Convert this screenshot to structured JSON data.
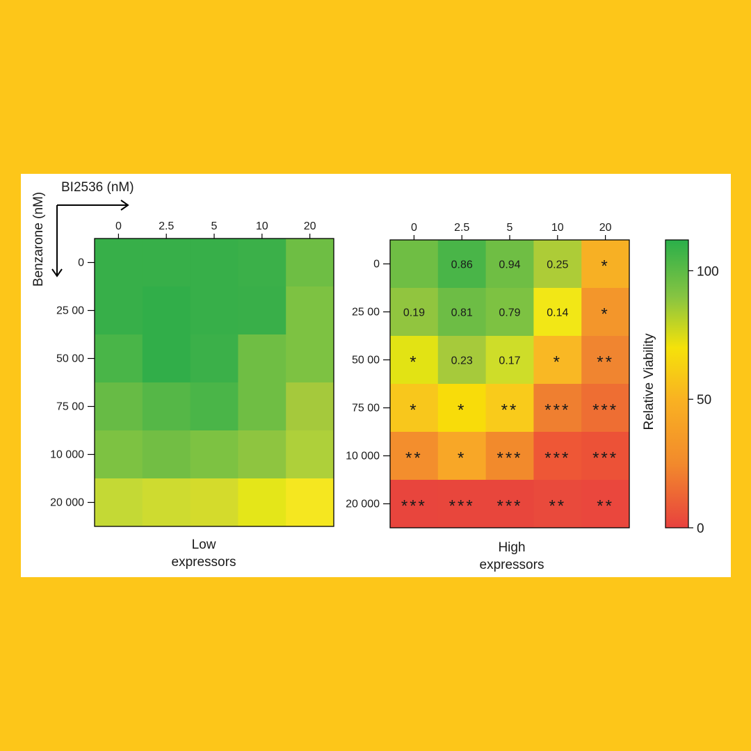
{
  "background_color": "#FDC619",
  "panel_color": "#FFFFFF",
  "axis_titles": {
    "drug_x": "BI2536 (nM)",
    "drug_y": "Benzarone (nM)"
  },
  "colorbar": {
    "label": "Relative Viability",
    "ticks": [
      "100",
      "50",
      "0"
    ],
    "tick_values": [
      100,
      50,
      0
    ],
    "stops": [
      {
        "value": 0,
        "color": "#E8413E"
      },
      {
        "value": 25,
        "color": "#F28A2C"
      },
      {
        "value": 50,
        "color": "#F9B222"
      },
      {
        "value": 70,
        "color": "#F5E20A"
      },
      {
        "value": 90,
        "color": "#86C442"
      },
      {
        "value": 112,
        "color": "#2AAF4A"
      }
    ]
  },
  "chart_data": [
    {
      "type": "heatmap",
      "title": "Low expressors",
      "title_lines": [
        "Low",
        "expressors"
      ],
      "x_categories": [
        "0",
        "2.5",
        "5",
        "10",
        "20"
      ],
      "y_categories": [
        "0",
        "2500",
        "5000",
        "7500",
        "10000",
        "20000"
      ],
      "y_tick_labels": [
        "0",
        "25 00",
        "50 00",
        "75 00",
        "10 000",
        "20 000"
      ],
      "colors": [
        [
          "#37AF49",
          "#37AF49",
          "#37AF49",
          "#3BB049",
          "#6EBE44"
        ],
        [
          "#37AF49",
          "#31AE49",
          "#37AF49",
          "#39AF49",
          "#7DC242"
        ],
        [
          "#49B548",
          "#31AE49",
          "#3BB049",
          "#6FBE44",
          "#7DC242"
        ],
        [
          "#67BB45",
          "#55B747",
          "#4AB548",
          "#6FBE44",
          "#A5C93C"
        ],
        [
          "#7DC242",
          "#72BE44",
          "#7DC242",
          "#8EC540",
          "#AED03A"
        ],
        [
          "#C4D935",
          "#CEDB30",
          "#D4DB2C",
          "#E4E619",
          "#F5E720"
        ]
      ],
      "annotations": [
        [
          "",
          "",
          "",
          "",
          ""
        ],
        [
          "",
          "",
          "",
          "",
          ""
        ],
        [
          "",
          "",
          "",
          "",
          ""
        ],
        [
          "",
          "",
          "",
          "",
          ""
        ],
        [
          "",
          "",
          "",
          "",
          ""
        ],
        [
          "",
          "",
          "",
          "",
          ""
        ]
      ]
    },
    {
      "type": "heatmap",
      "title": "High expressors",
      "title_lines": [
        "High",
        "expressors"
      ],
      "x_categories": [
        "0",
        "2.5",
        "5",
        "10",
        "20"
      ],
      "y_categories": [
        "0",
        "2500",
        "5000",
        "7500",
        "10000",
        "20000"
      ],
      "y_tick_labels": [
        "0",
        "25 00",
        "50 00",
        "75 00",
        "10 000",
        "20 000"
      ],
      "colors": [
        [
          "#6FBE44",
          "#49B548",
          "#6FBE44",
          "#ADCC37",
          "#F7B024"
        ],
        [
          "#91C53F",
          "#6DBD45",
          "#7DC242",
          "#F2E716",
          "#F3962B"
        ],
        [
          "#E2E314",
          "#A6CA3B",
          "#CEDD29",
          "#F9B824",
          "#F08530"
        ],
        [
          "#F8C71C",
          "#F8DC0A",
          "#F9CB1B",
          "#EF7F30",
          "#EE6E33"
        ],
        [
          "#F38E2D",
          "#F8A727",
          "#F28A2C",
          "#EE5736",
          "#EC5237"
        ],
        [
          "#E8453D",
          "#E8463C",
          "#E8463C",
          "#E94A3C",
          "#EA473D"
        ]
      ],
      "annotations": [
        [
          "",
          "0.86",
          "0.94",
          "0.25",
          "*"
        ],
        [
          "0.19",
          "0.81",
          "0.79",
          "0.14",
          "*"
        ],
        [
          "*",
          "0.23",
          "0.17",
          "*",
          "**"
        ],
        [
          "*",
          "*",
          "**",
          "***",
          "***"
        ],
        [
          "**",
          "*",
          "***",
          "***",
          "***"
        ],
        [
          "***",
          "***",
          "***",
          "**",
          "**"
        ]
      ]
    }
  ]
}
